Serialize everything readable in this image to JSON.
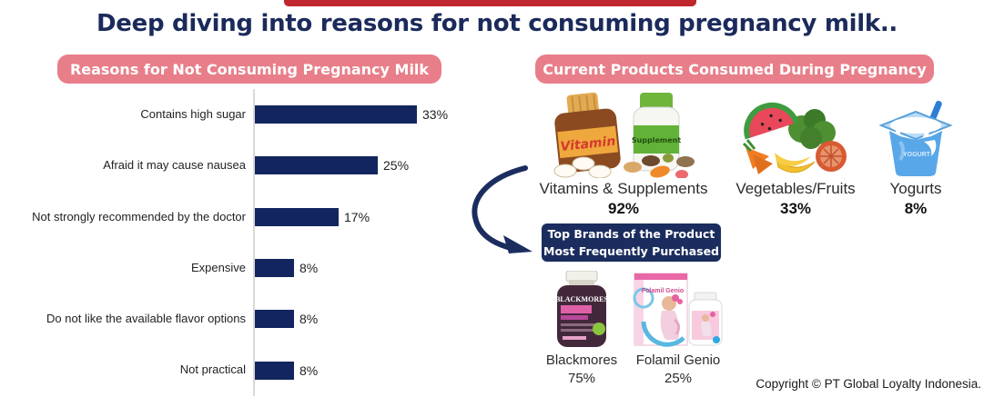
{
  "page": {
    "title": "Deep diving into reasons for not consuming pregnancy milk..",
    "copyright": "Copyright © PT Global Loyalty Indonesia.",
    "top_bar_color": "#c0262e",
    "title_color": "#1b2a5b"
  },
  "left_panel": {
    "badge_label": "Reasons for Not Consuming Pregnancy Milk",
    "badge_color": "#e87e89"
  },
  "chart_data": {
    "type": "bar",
    "orientation": "horizontal",
    "title": "Reasons for Not Consuming Pregnancy Milk",
    "categories": [
      "Contains high sugar",
      "Afraid it may cause nausea",
      "Not strongly recommended by the doctor",
      "Expensive",
      "Do not like the available flavor options",
      "Not practical"
    ],
    "values": [
      33,
      25,
      17,
      8,
      8,
      8
    ],
    "value_labels": [
      "33%",
      "25%",
      "17%",
      "8%",
      "8%",
      "8%"
    ],
    "xlim": [
      0,
      45
    ],
    "bar_color": "#12255e",
    "grid": false,
    "legend": "none",
    "data_labels": "outside-end"
  },
  "right_panel": {
    "badge_label": "Current Products Consumed During Pregnancy",
    "badge_color": "#e87e89",
    "products": [
      {
        "name": "Vitamins & Supplements",
        "value": "92%",
        "icon_text_1": "Vitamin",
        "icon_text_2": "Supplement"
      },
      {
        "name": "Vegetables/Fruits",
        "value": "33%"
      },
      {
        "name": "Yogurts",
        "value": "8%",
        "icon_text_1": "YOGURT"
      }
    ],
    "top_brands_badge_line1": "Top Brands of the Product",
    "top_brands_badge_line2": "Most Frequently Purchased",
    "brands": [
      {
        "name": "Blackmores",
        "value": "75%",
        "icon_text_1": "BLACKMORES"
      },
      {
        "name": "Folamil Genio",
        "value": "25%",
        "icon_text_1": "Folamil Genio"
      }
    ]
  }
}
